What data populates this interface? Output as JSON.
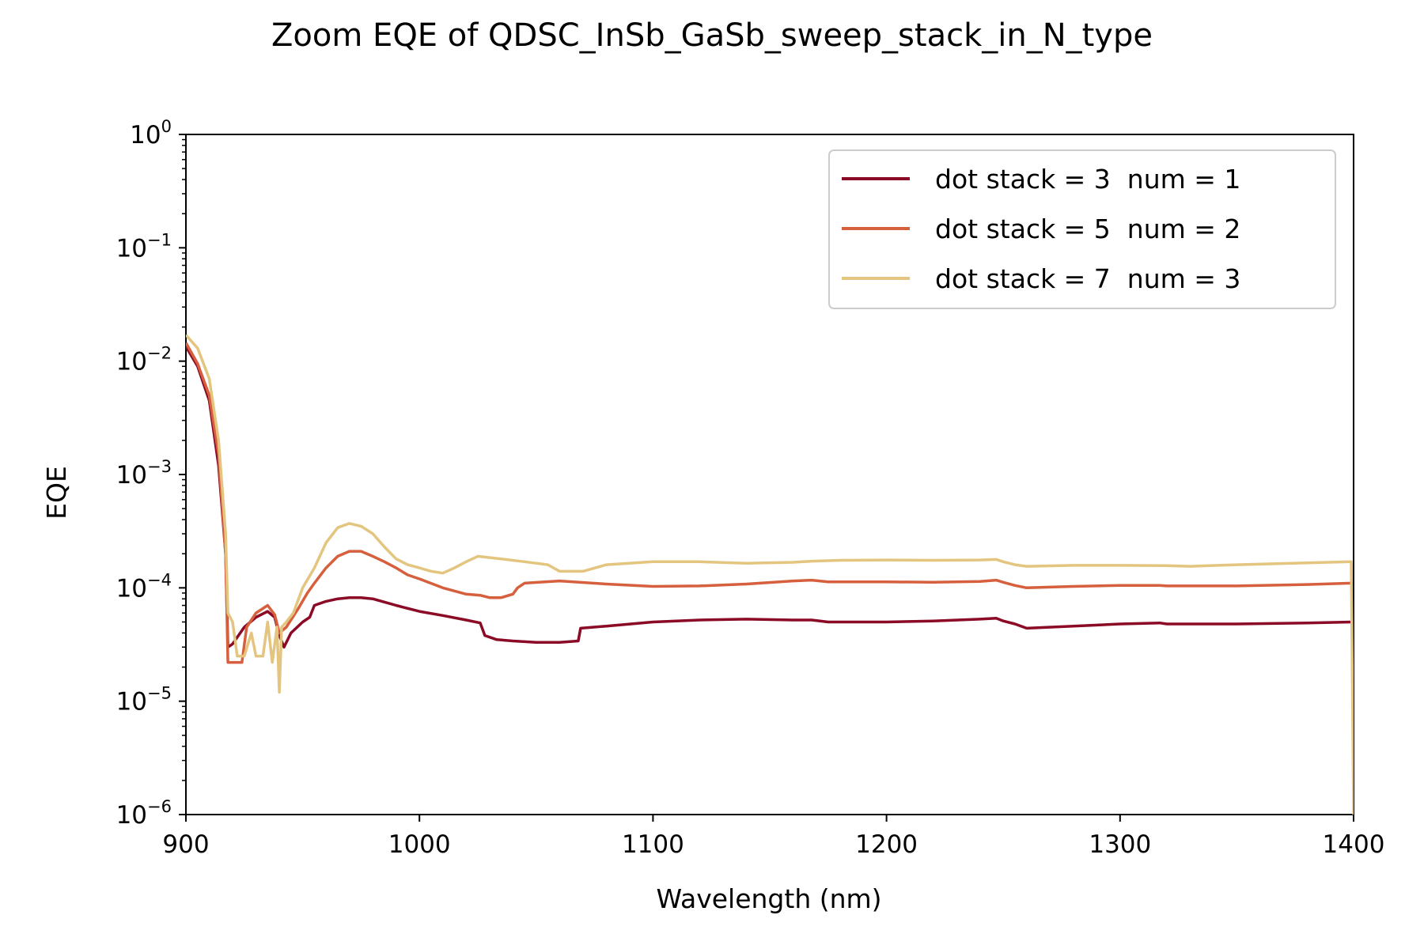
{
  "chart_data": {
    "type": "line",
    "title": "Zoom EQE of QDSC_InSb_GaSb_sweep_stack_in_N_type",
    "xlabel": "Wavelength (nm)",
    "ylabel": "EQE",
    "xlim": [
      900,
      1400
    ],
    "ylim": [
      1e-06,
      1
    ],
    "yscale": "log",
    "x_ticks": [
      900,
      1000,
      1100,
      1200,
      1300,
      1400
    ],
    "y_ticks": [
      {
        "value": 1,
        "base": "10",
        "exp": "0"
      },
      {
        "value": 0.1,
        "base": "10",
        "exp": "−1"
      },
      {
        "value": 0.01,
        "base": "10",
        "exp": "−2"
      },
      {
        "value": 0.001,
        "base": "10",
        "exp": "−3"
      },
      {
        "value": 0.0001,
        "base": "10",
        "exp": "−4"
      },
      {
        "value": 1e-05,
        "base": "10",
        "exp": "−5"
      },
      {
        "value": 1e-06,
        "base": "10",
        "exp": "−6"
      }
    ],
    "grid": false,
    "legend_position": "top-right",
    "series": [
      {
        "name": "dot stack = 3  num = 1",
        "color": "#8b0a26",
        "points": [
          [
            900,
            0.0135
          ],
          [
            905,
            0.009
          ],
          [
            910,
            0.0045
          ],
          [
            914,
            0.0012
          ],
          [
            917,
            0.0002
          ],
          [
            918,
            3e-05
          ],
          [
            920,
            3.2e-05
          ],
          [
            925,
            4.5e-05
          ],
          [
            930,
            5.5e-05
          ],
          [
            935,
            6.2e-05
          ],
          [
            938,
            5.5e-05
          ],
          [
            940,
            3.8e-05
          ],
          [
            942,
            3e-05
          ],
          [
            945,
            4e-05
          ],
          [
            950,
            5e-05
          ],
          [
            953,
            5.5e-05
          ],
          [
            955,
            7e-05
          ],
          [
            960,
            7.6e-05
          ],
          [
            965,
            8e-05
          ],
          [
            970,
            8.2e-05
          ],
          [
            975,
            8.2e-05
          ],
          [
            980,
            8e-05
          ],
          [
            990,
            7e-05
          ],
          [
            1000,
            6.2e-05
          ],
          [
            1010,
            5.7e-05
          ],
          [
            1020,
            5.2e-05
          ],
          [
            1026,
            4.9e-05
          ],
          [
            1028,
            3.8e-05
          ],
          [
            1033,
            3.5e-05
          ],
          [
            1040,
            3.4e-05
          ],
          [
            1050,
            3.3e-05
          ],
          [
            1060,
            3.3e-05
          ],
          [
            1068,
            3.4e-05
          ],
          [
            1069,
            4.4e-05
          ],
          [
            1080,
            4.6e-05
          ],
          [
            1100,
            5e-05
          ],
          [
            1120,
            5.2e-05
          ],
          [
            1140,
            5.3e-05
          ],
          [
            1160,
            5.2e-05
          ],
          [
            1168,
            5.2e-05
          ],
          [
            1175,
            5e-05
          ],
          [
            1200,
            5e-05
          ],
          [
            1220,
            5.1e-05
          ],
          [
            1240,
            5.3e-05
          ],
          [
            1247,
            5.4e-05
          ],
          [
            1250,
            5.1e-05
          ],
          [
            1255,
            4.8e-05
          ],
          [
            1260,
            4.4e-05
          ],
          [
            1280,
            4.6e-05
          ],
          [
            1300,
            4.8e-05
          ],
          [
            1317,
            4.9e-05
          ],
          [
            1320,
            4.8e-05
          ],
          [
            1350,
            4.8e-05
          ],
          [
            1380,
            4.9e-05
          ],
          [
            1399,
            5e-05
          ]
        ]
      },
      {
        "name": "dot stack = 5  num = 2",
        "color": "#d6603e",
        "points": [
          [
            900,
            0.0145
          ],
          [
            905,
            0.0095
          ],
          [
            910,
            0.005
          ],
          [
            914,
            0.0015
          ],
          [
            917,
            0.0002
          ],
          [
            918,
            2.2e-05
          ],
          [
            920,
            2.2e-05
          ],
          [
            924,
            2.2e-05
          ],
          [
            926,
            4.5e-05
          ],
          [
            930,
            6e-05
          ],
          [
            935,
            7e-05
          ],
          [
            938,
            5.8e-05
          ],
          [
            940,
            4e-05
          ],
          [
            943,
            4.5e-05
          ],
          [
            948,
            6.5e-05
          ],
          [
            952,
            9e-05
          ],
          [
            955,
            0.00011
          ],
          [
            960,
            0.00015
          ],
          [
            965,
            0.00019
          ],
          [
            970,
            0.00021
          ],
          [
            975,
            0.00021
          ],
          [
            980,
            0.00019
          ],
          [
            985,
            0.00017
          ],
          [
            990,
            0.00015
          ],
          [
            995,
            0.00013
          ],
          [
            1000,
            0.00012
          ],
          [
            1010,
            0.0001
          ],
          [
            1020,
            8.8e-05
          ],
          [
            1026,
            8.6e-05
          ],
          [
            1030,
            8.2e-05
          ],
          [
            1035,
            8.2e-05
          ],
          [
            1040,
            8.8e-05
          ],
          [
            1042,
            0.0001
          ],
          [
            1045,
            0.00011
          ],
          [
            1060,
            0.000115
          ],
          [
            1080,
            0.000108
          ],
          [
            1100,
            0.000103
          ],
          [
            1120,
            0.000104
          ],
          [
            1140,
            0.000108
          ],
          [
            1160,
            0.000115
          ],
          [
            1168,
            0.000117
          ],
          [
            1175,
            0.000113
          ],
          [
            1200,
            0.000113
          ],
          [
            1220,
            0.000112
          ],
          [
            1240,
            0.000114
          ],
          [
            1247,
            0.000117
          ],
          [
            1250,
            0.000112
          ],
          [
            1255,
            0.000105
          ],
          [
            1260,
            0.0001
          ],
          [
            1280,
            0.000103
          ],
          [
            1300,
            0.000105
          ],
          [
            1317,
            0.000105
          ],
          [
            1320,
            0.000104
          ],
          [
            1350,
            0.000104
          ],
          [
            1380,
            0.000107
          ],
          [
            1399,
            0.00011
          ]
        ]
      },
      {
        "name": "dot stack = 7  num = 3",
        "color": "#e3c57f",
        "points": [
          [
            900,
            0.017
          ],
          [
            905,
            0.013
          ],
          [
            910,
            0.007
          ],
          [
            914,
            0.002
          ],
          [
            917,
            0.0003
          ],
          [
            918,
            6e-05
          ],
          [
            920,
            5e-05
          ],
          [
            922,
            2.5e-05
          ],
          [
            925,
            2.5e-05
          ],
          [
            928,
            4e-05
          ],
          [
            930,
            2.5e-05
          ],
          [
            933,
            2.5e-05
          ],
          [
            935,
            5e-05
          ],
          [
            937,
            2.2e-05
          ],
          [
            939,
            4.5e-05
          ],
          [
            940,
            1.2e-05
          ],
          [
            941,
            4.5e-05
          ],
          [
            943,
            5e-05
          ],
          [
            946,
            6e-05
          ],
          [
            950,
            0.0001
          ],
          [
            955,
            0.00015
          ],
          [
            960,
            0.00025
          ],
          [
            965,
            0.00034
          ],
          [
            970,
            0.00037
          ],
          [
            975,
            0.00035
          ],
          [
            980,
            0.0003
          ],
          [
            985,
            0.00023
          ],
          [
            990,
            0.00018
          ],
          [
            995,
            0.00016
          ],
          [
            1000,
            0.00015
          ],
          [
            1005,
            0.00014
          ],
          [
            1010,
            0.000135
          ],
          [
            1015,
            0.00015
          ],
          [
            1020,
            0.00017
          ],
          [
            1025,
            0.00019
          ],
          [
            1035,
            0.00018
          ],
          [
            1045,
            0.00017
          ],
          [
            1055,
            0.00016
          ],
          [
            1060,
            0.00014
          ],
          [
            1070,
            0.00014
          ],
          [
            1080,
            0.00016
          ],
          [
            1100,
            0.00017
          ],
          [
            1120,
            0.00017
          ],
          [
            1140,
            0.000165
          ],
          [
            1160,
            0.000168
          ],
          [
            1168,
            0.000172
          ],
          [
            1180,
            0.000175
          ],
          [
            1200,
            0.000176
          ],
          [
            1220,
            0.000175
          ],
          [
            1240,
            0.000176
          ],
          [
            1247,
            0.000178
          ],
          [
            1250,
            0.00017
          ],
          [
            1255,
            0.00016
          ],
          [
            1260,
            0.000155
          ],
          [
            1280,
            0.000158
          ],
          [
            1300,
            0.000158
          ],
          [
            1320,
            0.000157
          ],
          [
            1330,
            0.000155
          ],
          [
            1350,
            0.00016
          ],
          [
            1380,
            0.000166
          ],
          [
            1399,
            0.00017
          ],
          [
            1400,
            1e-06
          ]
        ]
      }
    ]
  }
}
